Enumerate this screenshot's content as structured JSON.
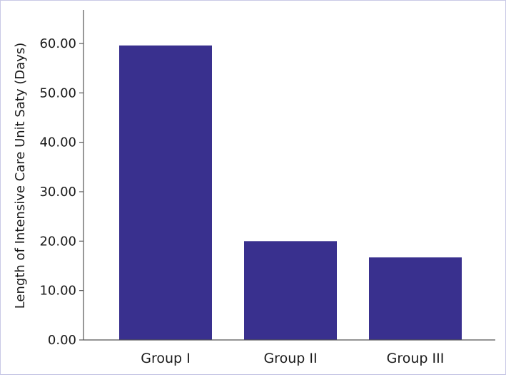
{
  "chart_data": {
    "type": "bar",
    "title": "",
    "xlabel": "",
    "ylabel": "Length of Intensive Care Unit Saty (Days)",
    "categories": [
      "Group I",
      "Group II",
      "Group III"
    ],
    "values": [
      59.6,
      20.0,
      16.7
    ],
    "ylim": [
      0,
      60
    ],
    "yticks": [
      "0.00",
      "10.00",
      "20.00",
      "30.00",
      "40.00",
      "50.00",
      "60.00"
    ],
    "grid": false,
    "legend": "none",
    "colors": {
      "bar": "#39308e",
      "axis": "#555555",
      "border": "#c9c9e6"
    }
  }
}
